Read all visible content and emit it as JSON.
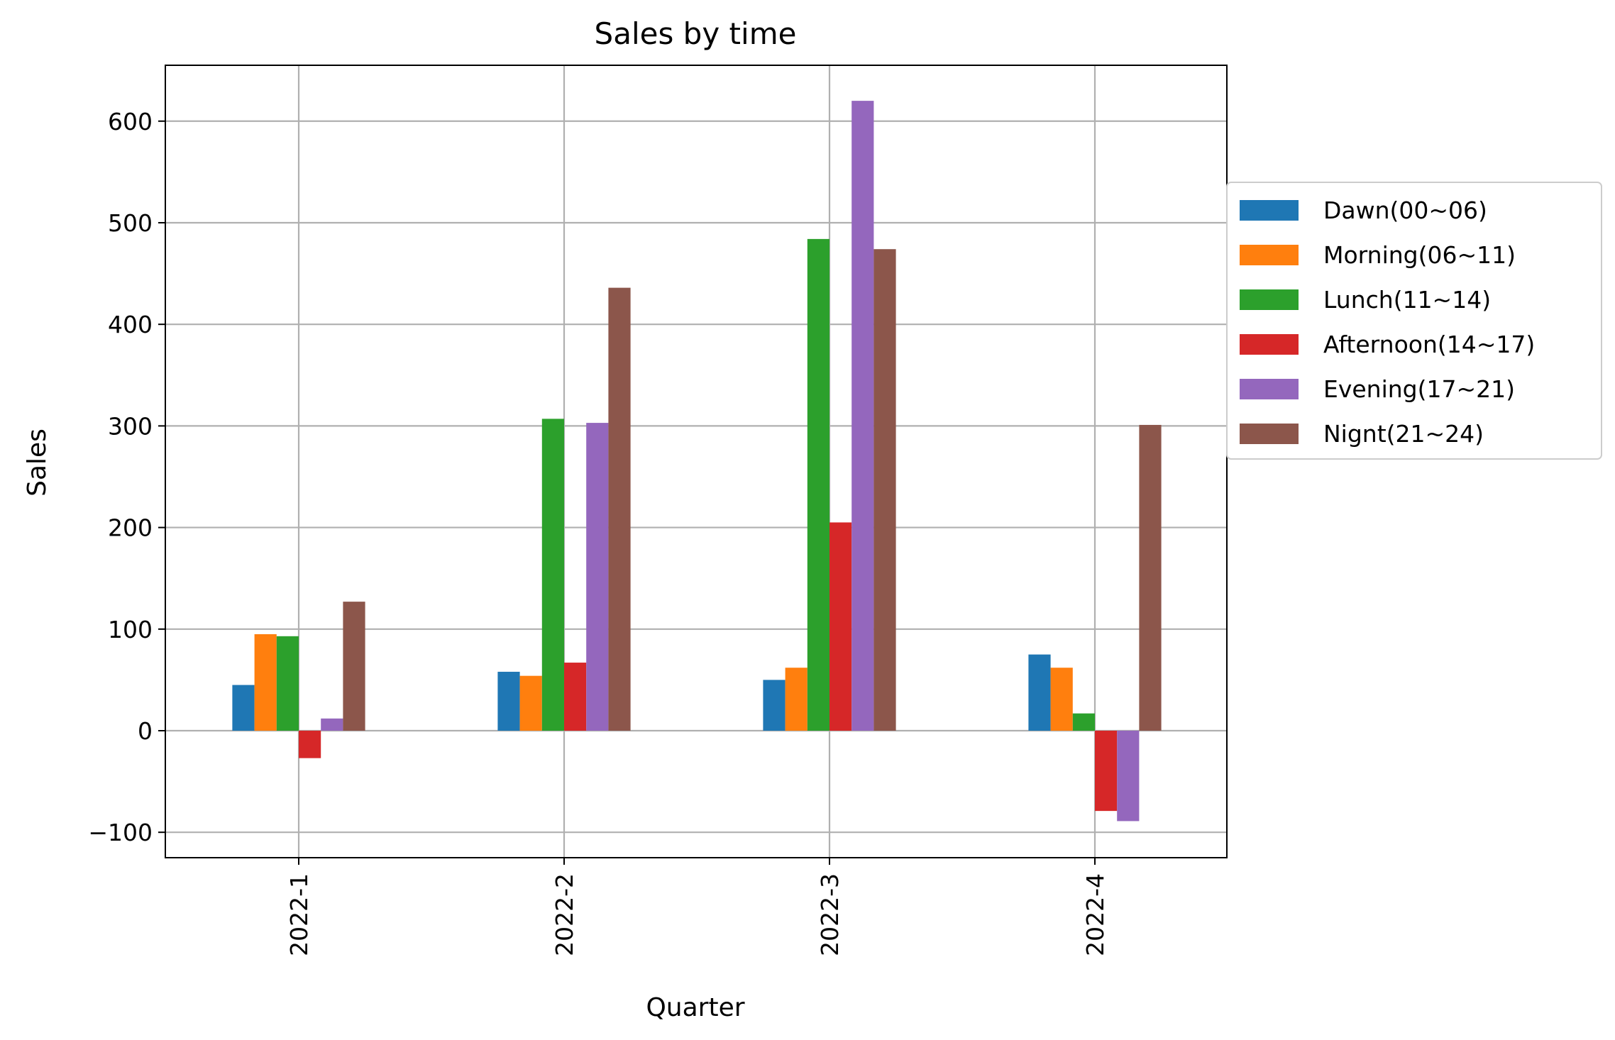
{
  "chart_data": {
    "type": "bar",
    "title": "Sales by time",
    "xlabel": "Quarter",
    "ylabel": "Sales",
    "categories": [
      "2022-1",
      "2022-2",
      "2022-3",
      "2022-4"
    ],
    "ylim": [
      -125,
      655
    ],
    "yticks": [
      -100,
      0,
      100,
      200,
      300,
      400,
      500,
      600
    ],
    "ytick_labels": [
      "−100",
      "0",
      "100",
      "200",
      "300",
      "400",
      "500",
      "600"
    ],
    "grid": true,
    "legend_position": "right, outside plot",
    "series": [
      {
        "name": "Dawn(00~06)",
        "color": "#1f77b4",
        "values": [
          45,
          58,
          50,
          75
        ]
      },
      {
        "name": "Morning(06~11)",
        "color": "#ff7f0e",
        "values": [
          95,
          54,
          62,
          62
        ]
      },
      {
        "name": "Lunch(11~14)",
        "color": "#2ca02c",
        "values": [
          93,
          307,
          484,
          17
        ]
      },
      {
        "name": "Afternoon(14~17)",
        "color": "#d62728",
        "values": [
          -27,
          67,
          205,
          -79
        ]
      },
      {
        "name": "Evening(17~21)",
        "color": "#9467bd",
        "values": [
          12,
          303,
          620,
          -89
        ]
      },
      {
        "name": "Nignt(21~24)",
        "color": "#8c564b",
        "values": [
          127,
          436,
          474,
          301
        ]
      }
    ]
  }
}
